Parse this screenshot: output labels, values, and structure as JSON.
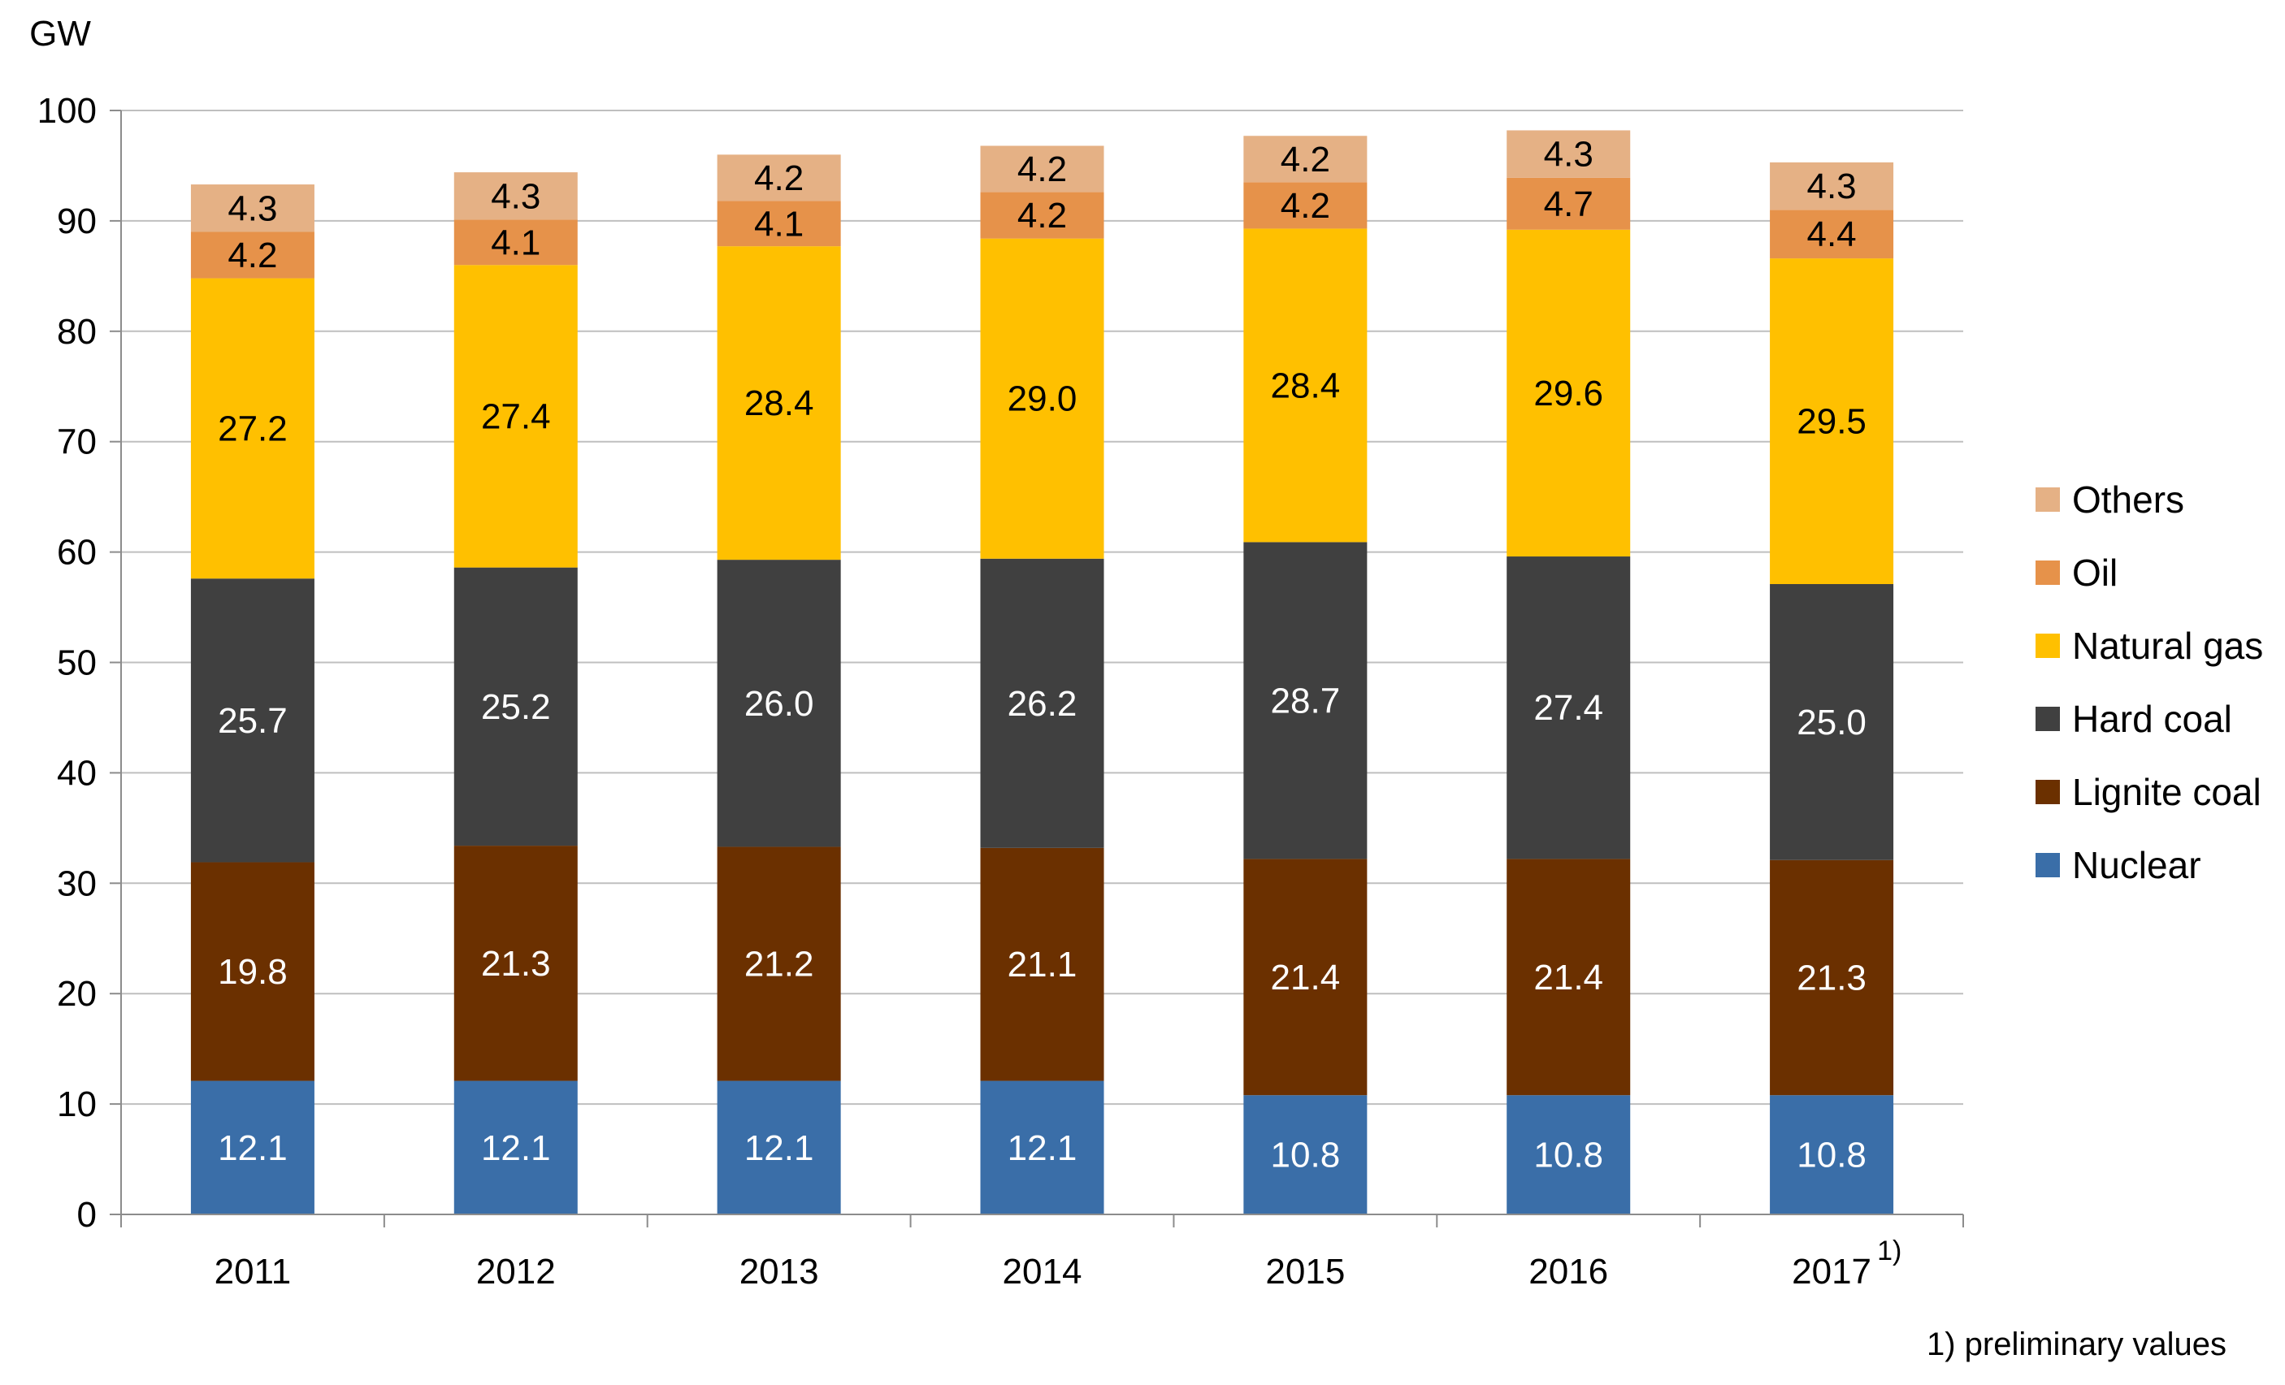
{
  "chart_data": {
    "type": "bar",
    "stacked": true,
    "title": "",
    "ylabel": "GW",
    "xlabel": "",
    "ylim": [
      0,
      100
    ],
    "yticks": [
      0,
      10,
      20,
      30,
      40,
      50,
      60,
      70,
      80,
      90,
      100
    ],
    "grid": true,
    "legend_position": "right",
    "categories": [
      "2011",
      "2012",
      "2013",
      "2014",
      "2015",
      "2016",
      "2017"
    ],
    "category_footnote_marks": {
      "2017": "1)"
    },
    "series": [
      {
        "name": "Nuclear",
        "color": "#3A6EA8",
        "label_color": "#ffffff",
        "values": [
          12.1,
          12.1,
          12.1,
          12.1,
          10.8,
          10.8,
          10.8
        ],
        "labels": [
          "12.1",
          "12.1",
          "12.1",
          "12.1",
          "10.8",
          "10.8",
          "10.8"
        ]
      },
      {
        "name": "Lignite coal",
        "color": "#6B3000",
        "label_color": "#ffffff",
        "values": [
          19.8,
          21.3,
          21.2,
          21.1,
          21.4,
          21.4,
          21.3
        ],
        "labels": [
          "19.8",
          "21.3",
          "21.2",
          "21.1",
          "21.4",
          "21.4",
          "21.3"
        ]
      },
      {
        "name": "Hard coal",
        "color": "#404040",
        "label_color": "#ffffff",
        "values": [
          25.7,
          25.2,
          26.0,
          26.2,
          28.7,
          27.4,
          25.0
        ],
        "labels": [
          "25.7",
          "25.2",
          "26.0",
          "26.2",
          "28.7",
          "27.4",
          "25.0"
        ]
      },
      {
        "name": "Natural gas",
        "color": "#FFC000",
        "label_color": "#000000",
        "values": [
          27.2,
          27.4,
          28.4,
          29.0,
          28.4,
          29.6,
          29.5
        ],
        "labels": [
          "27.2",
          "27.4",
          "28.4",
          "29.0",
          "28.4",
          "29.6",
          "29.5"
        ]
      },
      {
        "name": "Oil",
        "color": "#E6924A",
        "label_color": "#000000",
        "values": [
          4.2,
          4.1,
          4.1,
          4.2,
          4.2,
          4.7,
          4.4
        ],
        "labels": [
          "4.2",
          "4.1",
          "4.1",
          "4.2",
          "4.2",
          "4.7",
          "4.4"
        ]
      },
      {
        "name": "Others",
        "color": "#E5B185",
        "label_color": "#000000",
        "values": [
          4.3,
          4.3,
          4.2,
          4.2,
          4.2,
          4.3,
          4.3
        ],
        "labels": [
          "4.3",
          "4.3",
          "4.2",
          "4.2",
          "4.2",
          "4.3",
          "4.3"
        ]
      }
    ],
    "legend_order": [
      "Others",
      "Oil",
      "Natural gas",
      "Hard coal",
      "Lignite coal",
      "Nuclear"
    ],
    "footnote": "1) preliminary values"
  }
}
